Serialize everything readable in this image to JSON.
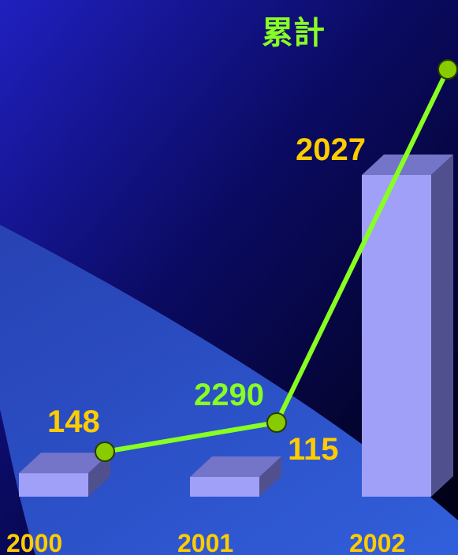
{
  "chart_data": {
    "type": "bar",
    "categories": [
      "2000",
      "2001",
      "2002"
    ],
    "values": [
      148,
      115,
      2027
    ],
    "cumulative": [
      148,
      263,
      2290
    ],
    "cumulative_label": "累計",
    "ylim": [
      0,
      2400
    ]
  },
  "colors": {
    "bar_front": "#a0a0f8",
    "bar_top": "#7474c8",
    "bar_side": "#50508e",
    "line": "#88ff22",
    "marker_fill": "#88cc00",
    "marker_stroke": "#2a3a00",
    "value_label": "#ffcc00",
    "cumulative_label": "#88ff22",
    "category_label": "#ffcc00"
  }
}
